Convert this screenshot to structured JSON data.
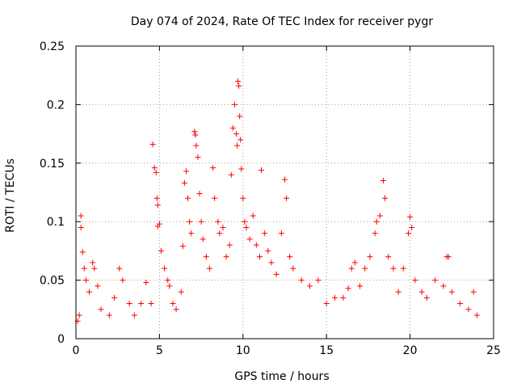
{
  "chart_data": {
    "type": "scatter",
    "title": "Day 074 of 2024, Rate Of TEC Index for receiver pygr",
    "xlabel": "GPS time / hours",
    "ylabel": "ROTI / TECUs",
    "xlim": [
      0,
      25
    ],
    "ylim": [
      0,
      0.25
    ],
    "x_ticks": [
      0,
      5,
      10,
      15,
      20,
      25
    ],
    "y_ticks": [
      0,
      0.05,
      0.1,
      0.15,
      0.2,
      0.25
    ],
    "x_tick_labels": [
      "0",
      "5",
      "10",
      "15",
      "20",
      "25"
    ],
    "y_tick_labels": [
      "0",
      "0.05",
      "0.1",
      "0.15",
      "0.2",
      "0.25"
    ],
    "grid": true,
    "marker": "+",
    "color": "#ff0000",
    "series": [
      {
        "name": "ROTI",
        "points": [
          [
            0.1,
            0.015
          ],
          [
            0.2,
            0.02
          ],
          [
            0.3,
            0.105
          ],
          [
            0.3,
            0.095
          ],
          [
            0.4,
            0.074
          ],
          [
            0.5,
            0.06
          ],
          [
            0.6,
            0.05
          ],
          [
            0.8,
            0.04
          ],
          [
            1.0,
            0.065
          ],
          [
            1.1,
            0.06
          ],
          [
            1.3,
            0.045
          ],
          [
            1.5,
            0.025
          ],
          [
            2.0,
            0.02
          ],
          [
            2.3,
            0.035
          ],
          [
            2.6,
            0.06
          ],
          [
            2.8,
            0.05
          ],
          [
            3.2,
            0.03
          ],
          [
            3.5,
            0.02
          ],
          [
            3.9,
            0.03
          ],
          [
            4.2,
            0.048
          ],
          [
            4.5,
            0.03
          ],
          [
            4.6,
            0.166
          ],
          [
            4.7,
            0.146
          ],
          [
            4.8,
            0.142
          ],
          [
            4.85,
            0.12
          ],
          [
            4.9,
            0.114
          ],
          [
            4.9,
            0.096
          ],
          [
            5.0,
            0.098
          ],
          [
            5.1,
            0.075
          ],
          [
            5.3,
            0.06
          ],
          [
            5.5,
            0.05
          ],
          [
            5.6,
            0.045
          ],
          [
            5.8,
            0.03
          ],
          [
            6.0,
            0.025
          ],
          [
            6.3,
            0.04
          ],
          [
            6.4,
            0.079
          ],
          [
            6.5,
            0.133
          ],
          [
            6.6,
            0.143
          ],
          [
            6.7,
            0.12
          ],
          [
            6.8,
            0.1
          ],
          [
            6.9,
            0.09
          ],
          [
            7.1,
            0.177
          ],
          [
            7.15,
            0.174
          ],
          [
            7.2,
            0.165
          ],
          [
            7.3,
            0.155
          ],
          [
            7.4,
            0.124
          ],
          [
            7.5,
            0.1
          ],
          [
            7.6,
            0.085
          ],
          [
            7.8,
            0.07
          ],
          [
            8.0,
            0.06
          ],
          [
            8.2,
            0.146
          ],
          [
            8.3,
            0.12
          ],
          [
            8.5,
            0.1
          ],
          [
            8.6,
            0.09
          ],
          [
            8.8,
            0.095
          ],
          [
            9.0,
            0.07
          ],
          [
            9.2,
            0.08
          ],
          [
            9.3,
            0.14
          ],
          [
            9.4,
            0.18
          ],
          [
            9.5,
            0.2
          ],
          [
            9.6,
            0.175
          ],
          [
            9.65,
            0.165
          ],
          [
            9.7,
            0.22
          ],
          [
            9.75,
            0.216
          ],
          [
            9.8,
            0.19
          ],
          [
            9.85,
            0.17
          ],
          [
            9.9,
            0.145
          ],
          [
            10.0,
            0.12
          ],
          [
            10.1,
            0.1
          ],
          [
            10.2,
            0.095
          ],
          [
            10.4,
            0.085
          ],
          [
            10.6,
            0.105
          ],
          [
            10.8,
            0.08
          ],
          [
            11.0,
            0.07
          ],
          [
            11.1,
            0.144
          ],
          [
            11.3,
            0.09
          ],
          [
            11.5,
            0.075
          ],
          [
            11.7,
            0.065
          ],
          [
            12.0,
            0.055
          ],
          [
            12.3,
            0.09
          ],
          [
            12.5,
            0.136
          ],
          [
            12.6,
            0.12
          ],
          [
            12.8,
            0.07
          ],
          [
            13.0,
            0.06
          ],
          [
            13.5,
            0.05
          ],
          [
            14.0,
            0.045
          ],
          [
            14.5,
            0.05
          ],
          [
            15.0,
            0.03
          ],
          [
            15.5,
            0.035
          ],
          [
            16.0,
            0.035
          ],
          [
            16.3,
            0.043
          ],
          [
            16.5,
            0.06
          ],
          [
            16.7,
            0.065
          ],
          [
            17.0,
            0.045
          ],
          [
            17.3,
            0.06
          ],
          [
            17.6,
            0.07
          ],
          [
            17.9,
            0.09
          ],
          [
            18.0,
            0.1
          ],
          [
            18.2,
            0.105
          ],
          [
            18.4,
            0.135
          ],
          [
            18.5,
            0.12
          ],
          [
            18.7,
            0.07
          ],
          [
            19.0,
            0.06
          ],
          [
            19.3,
            0.04
          ],
          [
            19.6,
            0.06
          ],
          [
            19.9,
            0.09
          ],
          [
            20.0,
            0.104
          ],
          [
            20.1,
            0.095
          ],
          [
            20.3,
            0.05
          ],
          [
            20.7,
            0.04
          ],
          [
            21.0,
            0.035
          ],
          [
            21.5,
            0.05
          ],
          [
            22.0,
            0.045
          ],
          [
            22.2,
            0.07
          ],
          [
            22.3,
            0.07
          ],
          [
            22.5,
            0.04
          ],
          [
            23.0,
            0.03
          ],
          [
            23.5,
            0.025
          ],
          [
            23.8,
            0.04
          ],
          [
            24.0,
            0.02
          ]
        ]
      }
    ]
  }
}
